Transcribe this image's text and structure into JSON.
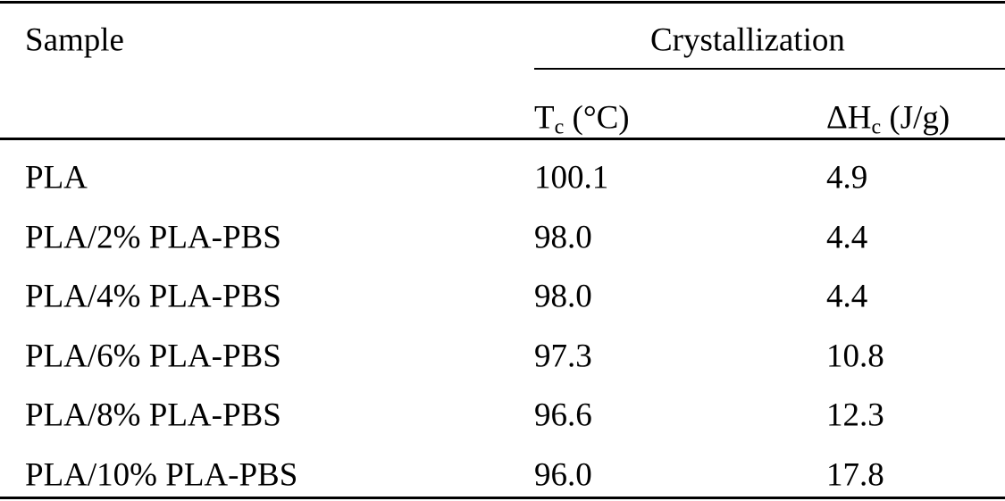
{
  "table": {
    "header": {
      "sample": "Sample",
      "group": "Crystallization",
      "columns": [
        {
          "base": "T",
          "sub": "c",
          "unit": "(°C)"
        },
        {
          "base": "ΔH",
          "sub": "c",
          "unit": "(J/g)"
        }
      ]
    },
    "rows": [
      [
        "PLA",
        "100.1",
        "4.9"
      ],
      [
        "PLA/2% PLA-PBS",
        "98.0",
        "4.4"
      ],
      [
        "PLA/4% PLA-PBS",
        "98.0",
        "4.4"
      ],
      [
        "PLA/6% PLA-PBS",
        "97.3",
        "10.8"
      ],
      [
        "PLA/8% PLA-PBS",
        "96.6",
        "12.3"
      ],
      [
        "PLA/10% PLA-PBS",
        "96.0",
        "17.8"
      ]
    ]
  }
}
